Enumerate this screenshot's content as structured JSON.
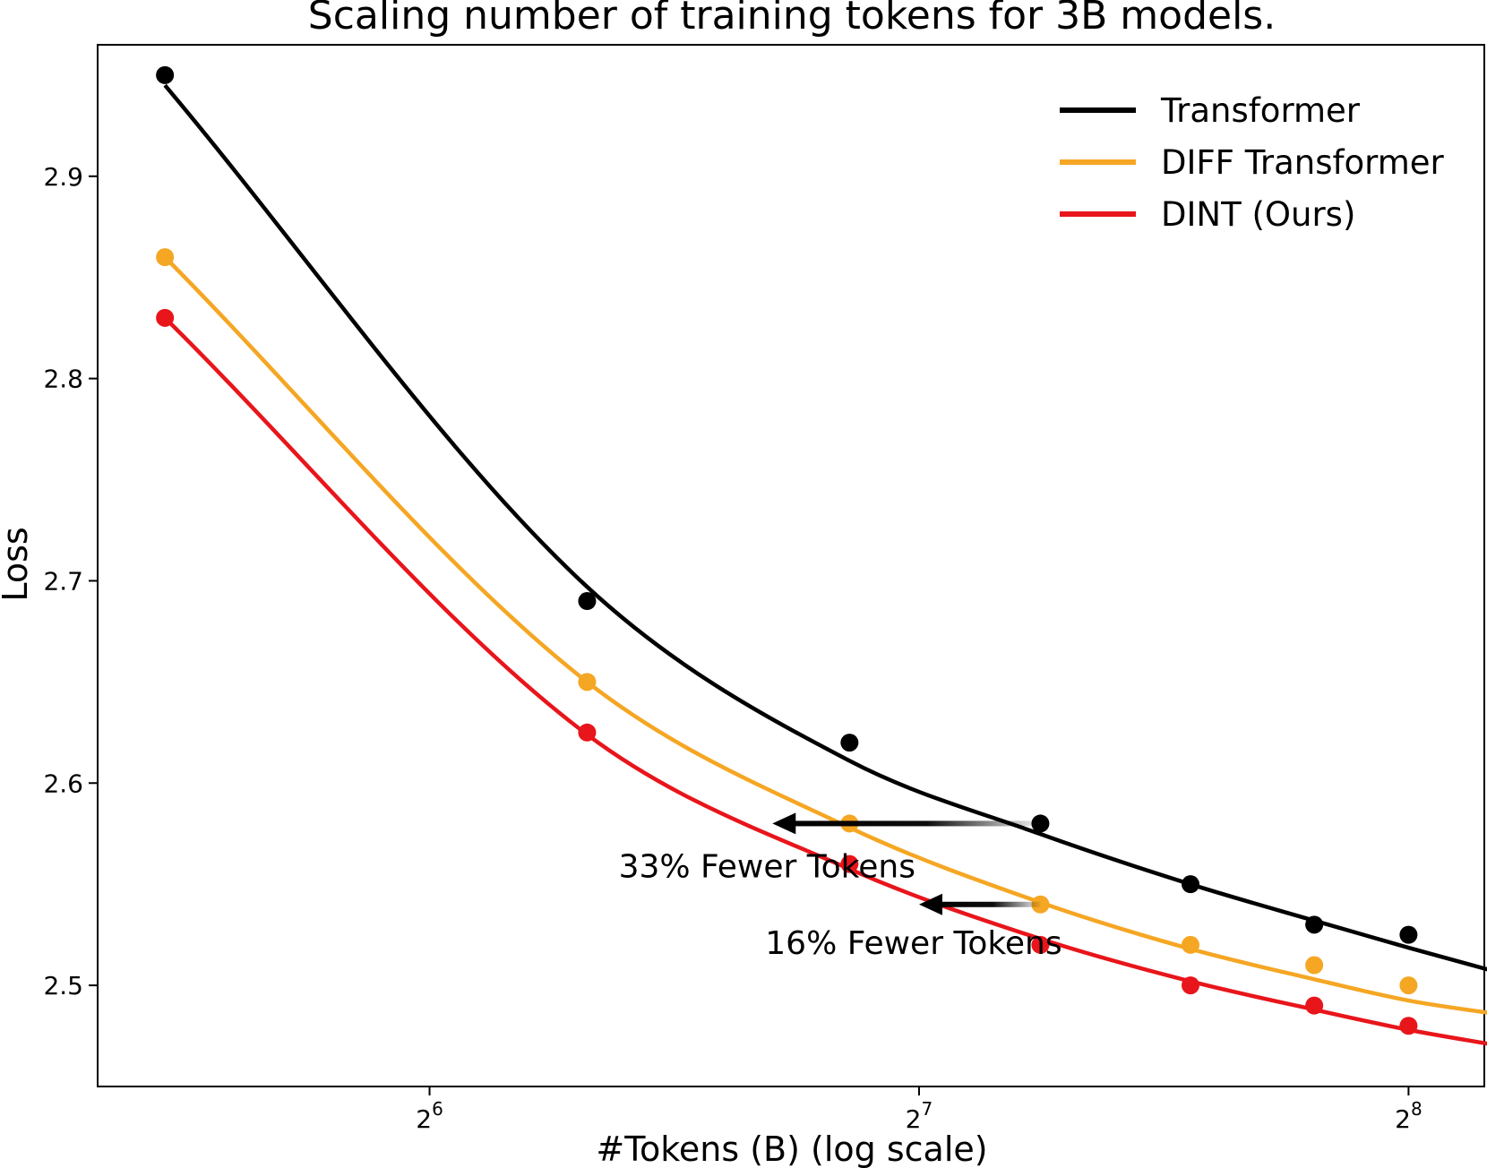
{
  "chart_data": {
    "type": "line",
    "title": "Scaling number of training tokens for 3B models.",
    "xlabel": "#Tokens (B) (log scale)",
    "ylabel": "Loss",
    "x_scale": "log2",
    "xlim": [
      40,
      285
    ],
    "ylim": [
      2.45,
      2.965
    ],
    "grid": false,
    "legend_position": "top-right",
    "x_ticks": [
      {
        "value": 64,
        "base": "2",
        "exp": "6"
      },
      {
        "value": 128,
        "base": "2",
        "exp": "7"
      },
      {
        "value": 256,
        "base": "2",
        "exp": "8"
      }
    ],
    "y_ticks": [
      2.5,
      2.6,
      2.7,
      2.8,
      2.9
    ],
    "x": [
      44,
      80,
      116,
      152,
      188,
      224,
      256,
      292
    ],
    "series": [
      {
        "name": "Transformer",
        "color": "#000000",
        "values": [
          2.95,
          2.69,
          2.62,
          2.58,
          2.55,
          2.53,
          2.525,
          2.51
        ],
        "fit": [
          2.945,
          2.697,
          2.611,
          2.5748,
          2.55,
          2.532,
          2.5186,
          2.506
        ]
      },
      {
        "name": "DIFF Transformer",
        "color": "#F5A623",
        "values": [
          2.86,
          2.65,
          2.58,
          2.54,
          2.52,
          2.51,
          2.5,
          2.49
        ],
        "fit": [
          2.86,
          2.65,
          2.578,
          2.541,
          2.518,
          2.503,
          2.4925,
          2.4855
        ]
      },
      {
        "name": "DINT (Ours)",
        "color": "#E8151B",
        "values": [
          2.83,
          2.625,
          2.56,
          2.52,
          2.5,
          2.49,
          2.48,
          2.475
        ],
        "fit": [
          2.83,
          2.624,
          2.5575,
          2.523,
          2.502,
          2.488,
          2.478,
          2.47
        ]
      }
    ],
    "annotations": [
      {
        "text": "33% Fewer Tokens",
        "arrow_from": {
          "x": 152,
          "y": 2.58
        },
        "arrow_to": {
          "x": 104,
          "y": 2.58
        }
      },
      {
        "text": "16% Fewer Tokens",
        "arrow_from": {
          "x": 152,
          "y": 2.54
        },
        "arrow_to": {
          "x": 128,
          "y": 2.54
        }
      }
    ]
  }
}
